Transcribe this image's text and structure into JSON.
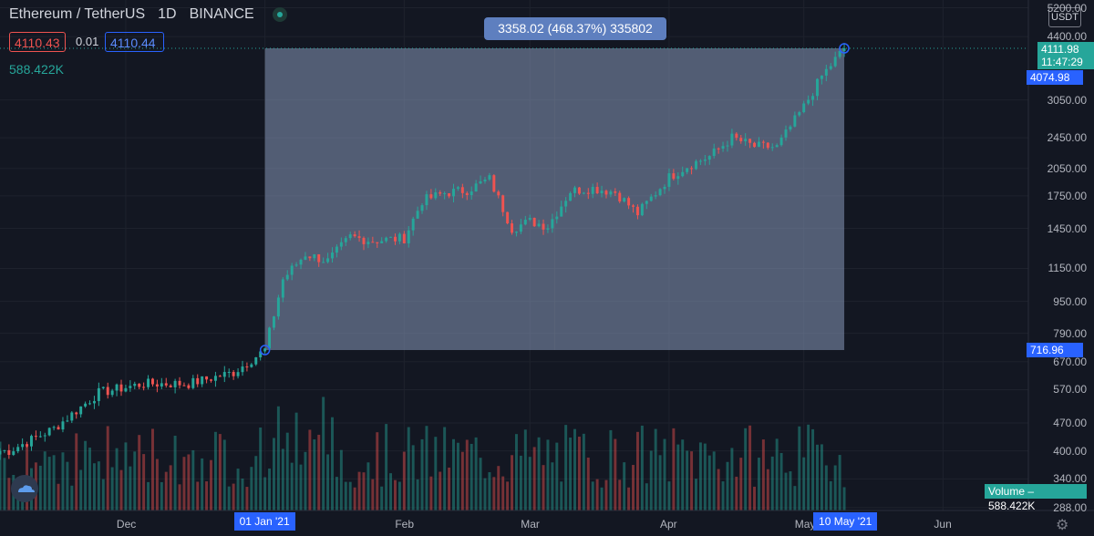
{
  "header": {
    "symbol": "Ethereum / TetherUS",
    "interval": "1D",
    "exchange": "BINANCE",
    "bid": "4110.43",
    "spread": "0.01",
    "ask": "4110.44",
    "volume_value": "588.422K"
  },
  "measure": {
    "label": "3358.02 (468.37%) 335802"
  },
  "price_axis": {
    "currency": "USDT",
    "ticks": [
      "5200.00",
      "4400.00",
      "3050.00",
      "2450.00",
      "2050.00",
      "1750.00",
      "1450.00",
      "1150.00",
      "950.00",
      "790.00",
      "670.00",
      "570.00",
      "470.00",
      "400.00",
      "340.00",
      "288.00"
    ],
    "last_price": "4111.98",
    "countdown": "11:47:29",
    "crosshair_price": "4074.98",
    "range_low_price": "716.96",
    "volume_tag": "Volume",
    "volume_tag_value": "588.422K"
  },
  "time_axis": {
    "labels": [
      "Dec",
      "01 Jan '21",
      "Feb",
      "Mar",
      "Apr",
      "May",
      "10 May '21",
      "Jun"
    ]
  },
  "colors": {
    "background": "#131722",
    "up": "#26a69a",
    "down": "#ef5350",
    "measure_fill": "#8798b8",
    "accent": "#2962ff"
  },
  "chart_data": {
    "type": "candlestick",
    "title": "Ethereum / TetherUS · 1D · BINANCE",
    "yscale": "log",
    "ylim": [
      288,
      5200
    ],
    "x_range": [
      "2020-11-03",
      "2021-06-20"
    ],
    "series": [
      {
        "name": "Ethereum / TetherUS",
        "x": [
          "2020-11-05",
          "2020-11-15",
          "2020-11-25",
          "2020-12-05",
          "2020-12-15",
          "2020-12-25",
          "2021-01-01",
          "2021-01-05",
          "2021-01-10",
          "2021-01-15",
          "2021-01-20",
          "2021-01-25",
          "2021-02-01",
          "2021-02-05",
          "2021-02-10",
          "2021-02-15",
          "2021-02-20",
          "2021-02-25",
          "2021-03-01",
          "2021-03-05",
          "2021-03-10",
          "2021-03-15",
          "2021-03-20",
          "2021-03-25",
          "2021-04-01",
          "2021-04-05",
          "2021-04-10",
          "2021-04-15",
          "2021-04-20",
          "2021-04-25",
          "2021-05-01",
          "2021-05-05",
          "2021-05-10"
        ],
        "close": [
          400,
          455,
          560,
          590,
          590,
          630,
          717,
          1080,
          1250,
          1200,
          1380,
          1350,
          1370,
          1700,
          1780,
          1810,
          1930,
          1450,
          1510,
          1470,
          1800,
          1830,
          1790,
          1580,
          1950,
          2080,
          2200,
          2450,
          2330,
          2320,
          2930,
          3500,
          4111
        ]
      }
    ]
  }
}
